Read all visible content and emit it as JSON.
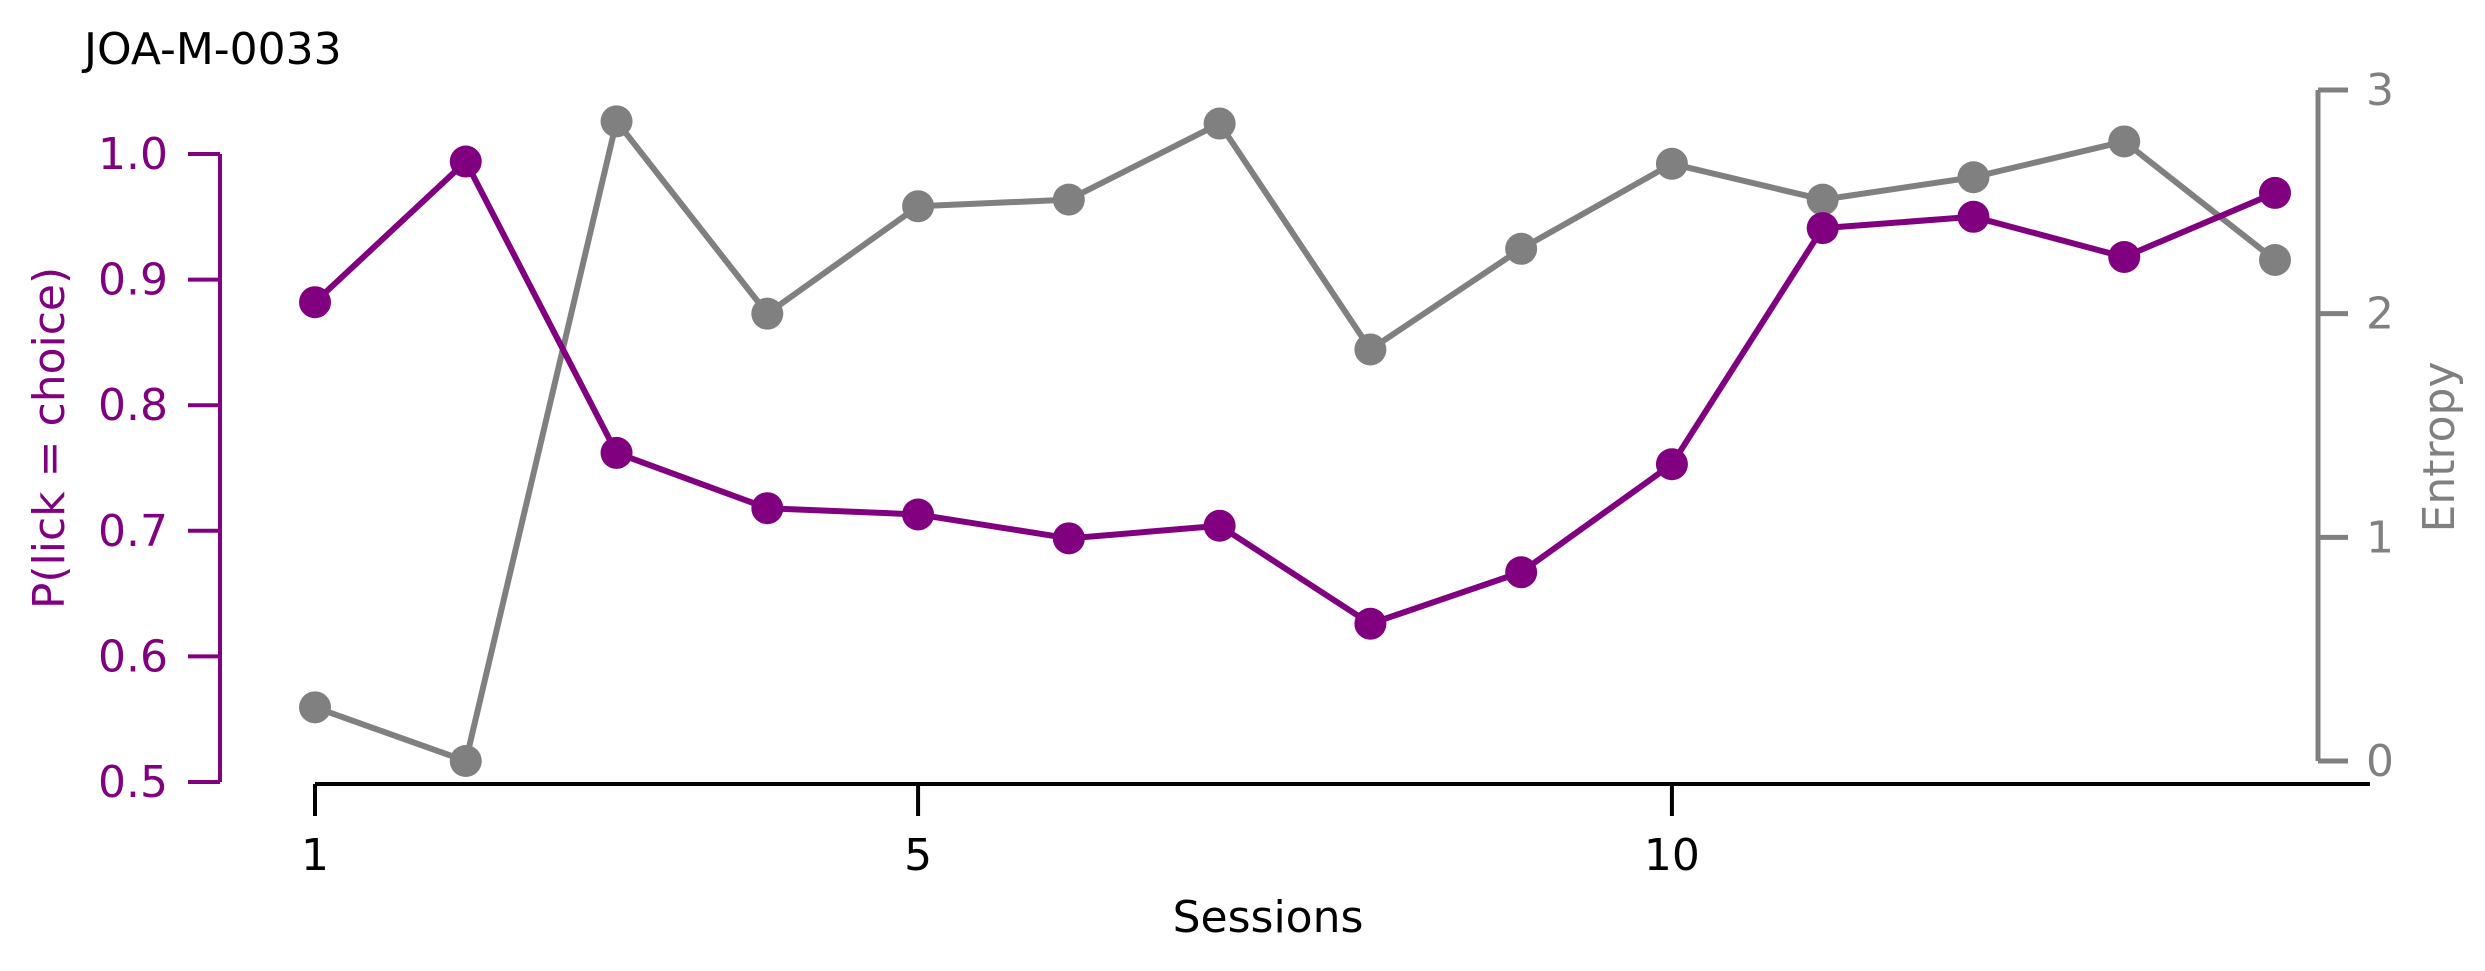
{
  "chart_data": {
    "type": "line",
    "title": "JOA-M-0033",
    "xlabel": "Sessions",
    "ylabel_left": "P(lick = choice)",
    "ylabel_right": "Entropy",
    "x": [
      1,
      2,
      3,
      4,
      5,
      6,
      7,
      8,
      9,
      10,
      11,
      12,
      13,
      14
    ],
    "x_ticks": [
      1,
      5,
      10
    ],
    "xlim": [
      1,
      14
    ],
    "ylim_left": [
      0.5,
      1.0
    ],
    "yticks_left": [
      "0.5",
      "0.6",
      "0.7",
      "0.8",
      "0.9",
      "1.0"
    ],
    "ylim_right": [
      0,
      3
    ],
    "yticks_right": [
      "0",
      "1",
      "2",
      "3"
    ],
    "grid": false,
    "series": [
      {
        "axis": "left",
        "color": "#800080",
        "values": [
          0.882,
          0.994,
          0.762,
          0.718,
          0.713,
          0.694,
          0.704,
          0.626,
          0.667,
          0.753,
          0.941,
          0.95,
          0.918,
          0.969
        ]
      },
      {
        "axis": "right",
        "color": "#808080",
        "values": [
          0.24,
          0.0,
          2.86,
          2.0,
          2.48,
          2.51,
          2.85,
          1.84,
          2.29,
          2.67,
          2.51,
          2.61,
          2.77,
          2.24
        ]
      }
    ]
  }
}
